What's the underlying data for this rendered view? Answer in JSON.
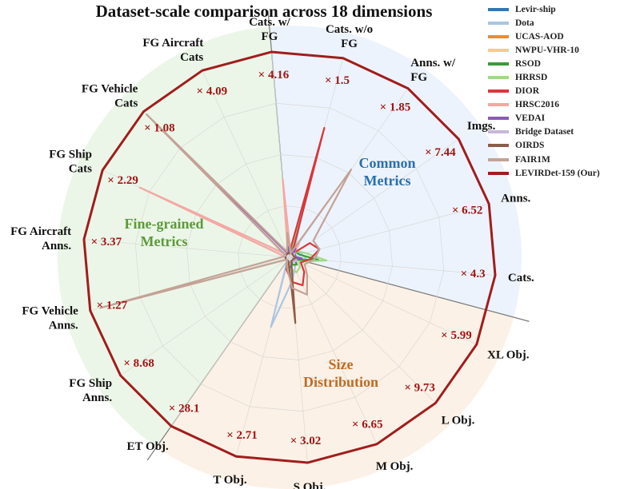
{
  "title": "Dataset-scale comparison across 18 dimensions",
  "colors": {
    "common_bg": "#edf3fc",
    "size_bg": "#fcf1e6",
    "fine_bg": "#ecf6e8",
    "outer_polygon": "#a11d1d",
    "ratio_text": "#a01515"
  },
  "regions": [
    {
      "label_lines": [
        "Common",
        "Metrics"
      ],
      "color": "#2a6fad"
    },
    {
      "label_lines": [
        "Size",
        "Distribution"
      ],
      "color": "#c06b23"
    },
    {
      "label_lines": [
        "Fine-grained",
        "Metrics"
      ],
      "color": "#5b9a3a"
    }
  ],
  "chart_data": {
    "type": "radar",
    "title": "Dataset-scale comparison across 18 dimensions",
    "grid": true,
    "legend_position": "top-right",
    "axes": [
      {
        "label": "Cats.",
        "ratio": "× 4.3"
      },
      {
        "label": "Anns.",
        "ratio": "× 6.52"
      },
      {
        "label": "Imgs.",
        "ratio": "× 7.44"
      },
      {
        "label": "Anns. w/ FG",
        "ratio": "× 1.85"
      },
      {
        "label": "Cats. w/o FG",
        "ratio": "× 1.5"
      },
      {
        "label": "Cats. w/ FG",
        "ratio": "× 4.16"
      },
      {
        "label": "FG Aircraft Cats",
        "ratio": "× 4.09"
      },
      {
        "label": "FG Vehicle Cats",
        "ratio": "× 1.08"
      },
      {
        "label": "FG Ship Cats",
        "ratio": "× 2.29"
      },
      {
        "label": "FG Aircraft Anns.",
        "ratio": "× 3.37"
      },
      {
        "label": "FG Vehicle Anns.",
        "ratio": "× 1.27"
      },
      {
        "label": "FG Ship Anns.",
        "ratio": "× 8.68"
      },
      {
        "label": "ET Obj.",
        "ratio": "× 28.1"
      },
      {
        "label": "T Obj.",
        "ratio": "× 2.71"
      },
      {
        "label": "S Obj.",
        "ratio": "× 3.02"
      },
      {
        "label": "M Obj.",
        "ratio": "× 6.65"
      },
      {
        "label": "L Obj.",
        "ratio": "× 9.73"
      },
      {
        "label": "XL Obj.",
        "ratio": "× 5.99"
      }
    ],
    "range": [
      0,
      1
    ],
    "series": [
      {
        "name": "Levir-ship",
        "color": "#2f78b7",
        "values": [
          0.02,
          0.03,
          0.03,
          0.02,
          0.02,
          0.02,
          0.02,
          0.02,
          0.02,
          0.02,
          0.02,
          0.02,
          0.02,
          0.05,
          0.05,
          0.03,
          0.02,
          0.02
        ]
      },
      {
        "name": "Dota",
        "color": "#a9c6e4",
        "values": [
          0.08,
          0.06,
          0.05,
          0.04,
          0.25,
          0.02,
          0.02,
          0.02,
          0.02,
          0.02,
          0.02,
          0.02,
          0.02,
          0.35,
          0.12,
          0.06,
          0.04,
          0.03
        ]
      },
      {
        "name": "UCAS-AOD",
        "color": "#f08a2a",
        "values": [
          0.03,
          0.02,
          0.02,
          0.02,
          0.04,
          0.02,
          0.02,
          0.02,
          0.02,
          0.02,
          0.02,
          0.02,
          0.02,
          0.03,
          0.03,
          0.02,
          0.02,
          0.02
        ]
      },
      {
        "name": "NWPU-VHR-10",
        "color": "#f8c98c",
        "values": [
          0.06,
          0.02,
          0.02,
          0.02,
          0.12,
          0.02,
          0.02,
          0.02,
          0.02,
          0.02,
          0.02,
          0.02,
          0.02,
          0.02,
          0.03,
          0.02,
          0.02,
          0.02
        ]
      },
      {
        "name": "RSOD",
        "color": "#3b9a3b",
        "values": [
          0.14,
          0.05,
          0.04,
          0.02,
          0.05,
          0.02,
          0.02,
          0.02,
          0.02,
          0.02,
          0.02,
          0.02,
          0.02,
          0.03,
          0.03,
          0.04,
          0.05,
          0.03
        ]
      },
      {
        "name": "HRRSD",
        "color": "#9edb87",
        "values": [
          0.18,
          0.08,
          0.05,
          0.02,
          0.16,
          0.02,
          0.02,
          0.02,
          0.02,
          0.02,
          0.02,
          0.02,
          0.02,
          0.04,
          0.06,
          0.08,
          0.07,
          0.05
        ]
      },
      {
        "name": "DIOR",
        "color": "#d7383a",
        "values": [
          0.1,
          0.15,
          0.12,
          0.02,
          0.65,
          0.02,
          0.02,
          0.02,
          0.02,
          0.02,
          0.02,
          0.02,
          0.02,
          0.06,
          0.12,
          0.15,
          0.1,
          0.06
        ]
      },
      {
        "name": "HRSC2016",
        "color": "#f4a8a4",
        "values": [
          0.05,
          0.02,
          0.02,
          0.08,
          0.02,
          0.38,
          0.02,
          0.02,
          0.8,
          0.02,
          0.02,
          0.02,
          0.02,
          0.02,
          0.03,
          0.02,
          0.02,
          0.02
        ]
      },
      {
        "name": "VEDAI",
        "color": "#8a5ab6",
        "values": [
          0.06,
          0.02,
          0.02,
          0.05,
          0.02,
          0.05,
          0.02,
          0.88,
          0.02,
          0.02,
          0.02,
          0.02,
          0.02,
          0.02,
          0.02,
          0.02,
          0.02,
          0.02
        ]
      },
      {
        "name": "Bridge Dataset",
        "color": "#c7b6d9",
        "values": [
          0.02,
          0.02,
          0.03,
          0.02,
          0.02,
          0.02,
          0.02,
          0.02,
          0.02,
          0.02,
          0.02,
          0.02,
          0.02,
          0.02,
          0.02,
          0.02,
          0.03,
          0.04
        ]
      },
      {
        "name": "OIRDS",
        "color": "#8d5c4a",
        "values": [
          0.03,
          0.02,
          0.02,
          0.02,
          0.03,
          0.02,
          0.02,
          0.02,
          0.02,
          0.02,
          0.02,
          0.02,
          0.02,
          0.02,
          0.32,
          0.02,
          0.02,
          0.02
        ]
      },
      {
        "name": "FAIR1M",
        "color": "#c4a296",
        "values": [
          0.12,
          0.15,
          0.14,
          0.52,
          0.02,
          0.12,
          0.03,
          0.98,
          0.02,
          0.03,
          0.95,
          0.02,
          0.02,
          0.05,
          0.15,
          0.2,
          0.12,
          0.08
        ]
      },
      {
        "name": "LEVIRDet-159 (Our)",
        "color": "#a11d1d",
        "values": [
          1,
          1,
          1,
          1,
          1,
          1,
          1,
          1,
          1,
          1,
          1,
          1,
          1,
          1,
          1,
          1,
          1,
          1
        ]
      }
    ]
  }
}
